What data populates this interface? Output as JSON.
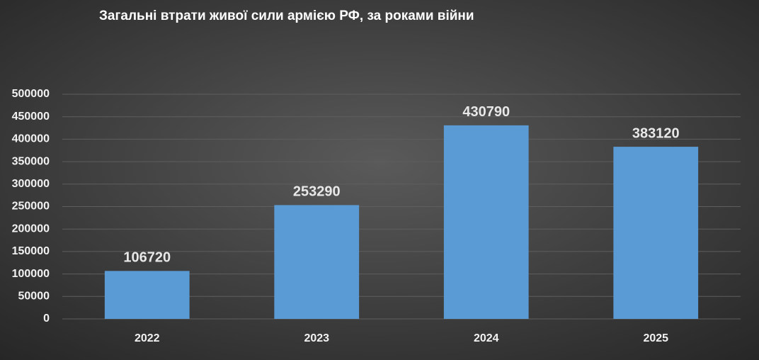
{
  "chart_data": {
    "type": "bar",
    "title": "Загальні втрати живої сили армією РФ, за роками війни",
    "categories": [
      "2022",
      "2023",
      "2024",
      "2025"
    ],
    "values": [
      106720,
      253290,
      430790,
      383120
    ],
    "color": "#5b9bd5",
    "ylim": [
      0,
      500000
    ],
    "yticks": [
      0,
      50000,
      100000,
      150000,
      200000,
      250000,
      300000,
      350000,
      400000,
      450000,
      500000
    ],
    "grid": true
  }
}
